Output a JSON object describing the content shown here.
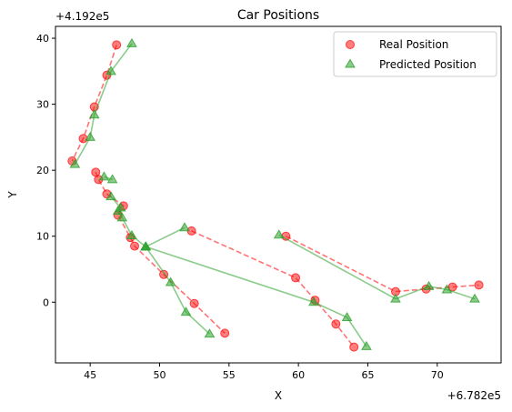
{
  "chart_data": {
    "type": "scatter",
    "title": "Car Positions",
    "xlabel": "X",
    "ylabel": "Y",
    "x_offset_label": "+6.782e5",
    "y_offset_label": "+4.192e5",
    "xlim": [
      42.5,
      74.6
    ],
    "ylim": [
      -9.2,
      41.8
    ],
    "x_ticks": [
      45,
      50,
      55,
      60,
      65,
      70
    ],
    "y_ticks": [
      0,
      10,
      20,
      30,
      40
    ],
    "grid": false,
    "legend_position": "upper right",
    "series": [
      {
        "name": "Real Position",
        "marker": "circle",
        "line": "dashed",
        "color": "#ff0000",
        "segments": [
          [
            [
              46.9,
              39.0
            ],
            [
              46.2,
              34.4
            ],
            [
              45.3,
              29.6
            ],
            [
              44.5,
              24.8
            ],
            [
              43.7,
              21.4
            ]
          ],
          [
            [
              45.4,
              19.7
            ],
            [
              45.6,
              18.6
            ],
            [
              46.2,
              16.4
            ],
            [
              47.4,
              14.6
            ],
            [
              47.0,
              13.2
            ],
            [
              47.9,
              9.8
            ],
            [
              48.2,
              8.5
            ],
            [
              50.3,
              4.2
            ],
            [
              52.5,
              -0.2
            ],
            [
              54.7,
              -4.7
            ]
          ],
          [
            [
              52.3,
              10.8
            ],
            [
              59.8,
              3.7
            ],
            [
              61.2,
              0.3
            ],
            [
              62.7,
              -3.3
            ],
            [
              64.0,
              -6.8
            ]
          ],
          [
            [
              59.1,
              10.0
            ],
            [
              67.0,
              1.6
            ],
            [
              69.2,
              2.0
            ],
            [
              71.1,
              2.3
            ],
            [
              73.0,
              2.6
            ]
          ]
        ]
      },
      {
        "name": "Predicted Position",
        "marker": "triangle",
        "line": "solid",
        "color": "#2ca02c",
        "segments": [
          [
            [
              48.0,
              39.2
            ],
            [
              46.5,
              35.0
            ],
            [
              45.3,
              28.4
            ],
            [
              45.0,
              25.0
            ],
            [
              43.9,
              20.9
            ]
          ],
          [
            [
              46.0,
              19.0
            ],
            [
              46.6,
              18.6
            ]
          ],
          [
            [
              46.5,
              16.0
            ],
            [
              47.2,
              14.3
            ],
            [
              47.0,
              13.8
            ],
            [
              47.3,
              12.8
            ],
            [
              48.0,
              10.1
            ],
            [
              49.0,
              8.4
            ],
            [
              50.8,
              3.0
            ],
            [
              51.9,
              -1.5
            ],
            [
              53.6,
              -4.8
            ]
          ],
          [
            [
              49.0,
              8.4
            ],
            [
              51.8,
              11.3
            ]
          ],
          [
            [
              49.0,
              8.4
            ],
            [
              61.1,
              0.0
            ],
            [
              63.5,
              -2.3
            ],
            [
              64.9,
              -6.7
            ]
          ],
          [
            [
              58.6,
              10.2
            ],
            [
              67.0,
              0.5
            ],
            [
              69.4,
              2.4
            ],
            [
              70.7,
              1.9
            ],
            [
              72.7,
              0.5
            ]
          ]
        ]
      }
    ]
  }
}
